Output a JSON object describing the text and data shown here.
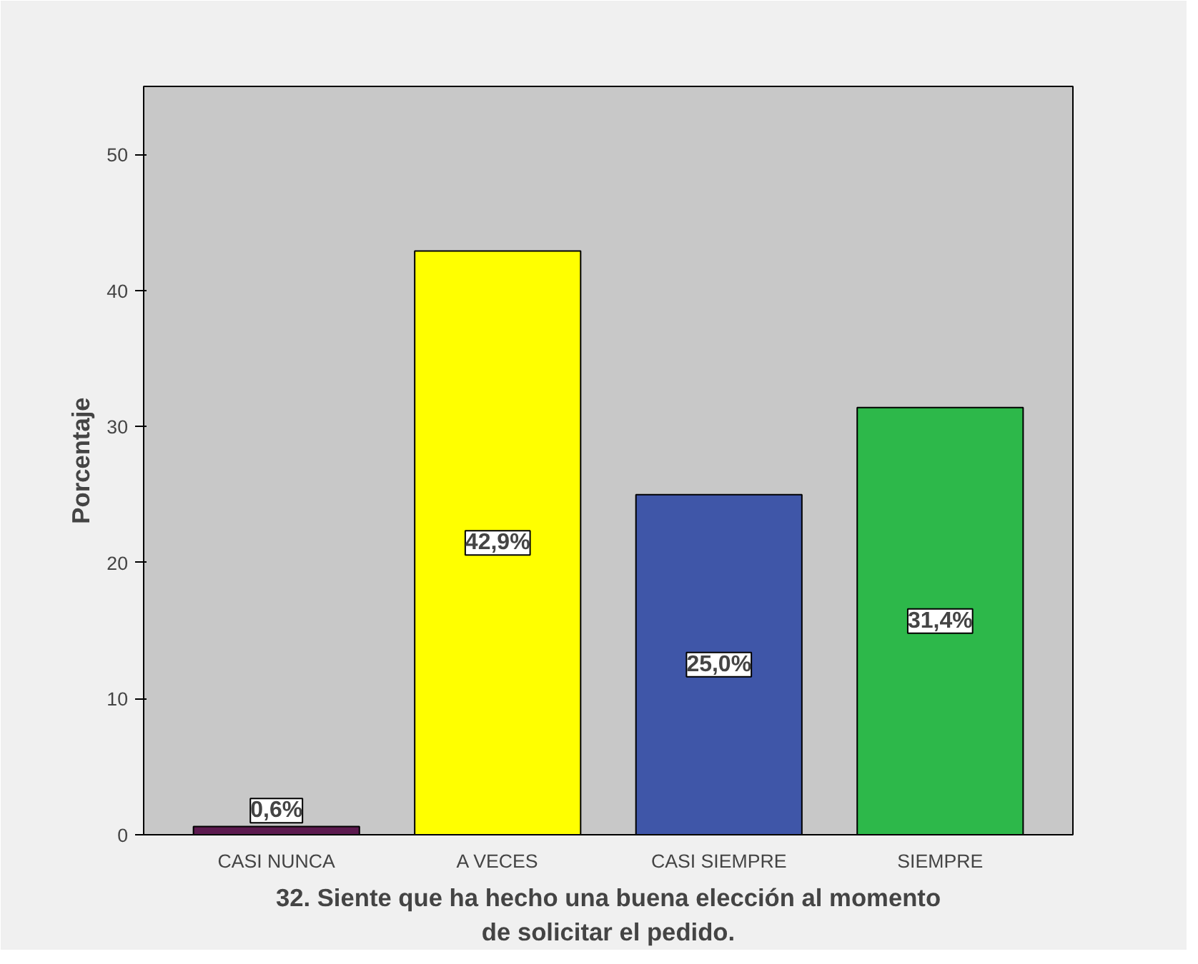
{
  "chart_data": {
    "type": "bar",
    "xlabel": "32. Siente que ha hecho una buena elección al momento\nde solicitar el pedido.",
    "ylabel": "Porcentaje",
    "categories": [
      "CASI NUNCA",
      "A VECES",
      "CASI SIEMPRE",
      "SIEMPRE"
    ],
    "values": [
      0.6,
      42.9,
      25.0,
      31.4
    ],
    "colors": [
      "#5c1a4f",
      "#ffff00",
      "#3f56a8",
      "#2db84a"
    ],
    "value_labels": [
      "0,6%",
      "42,9%",
      "25,0%",
      "31,4%"
    ],
    "ylim": [
      0,
      55
    ],
    "yticks": [
      0,
      10,
      20,
      30,
      40,
      50
    ],
    "grid": false
  }
}
